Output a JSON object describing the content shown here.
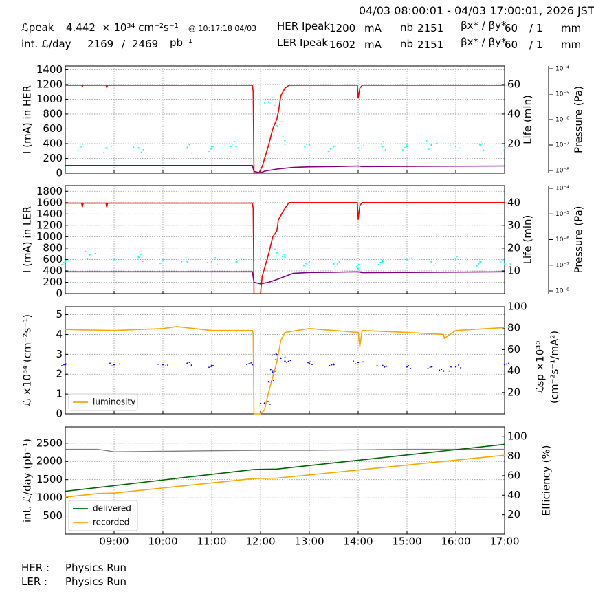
{
  "header": {
    "date_range": "04/03 08:00:01 - 04/03 17:00:01, 2026 JST",
    "lpeak_label": "ℒpeak",
    "lpeak_value": "4.442",
    "lpeak_unit": "× 10³⁴ cm⁻²s⁻¹",
    "lpeak_time": "@ 10:17:18 04/03",
    "intlum_label": "int. ℒ/day",
    "intlum_delivered": "2169",
    "intlum_sep": "/",
    "intlum_total": "2469",
    "intlum_unit": "pb⁻¹",
    "her": {
      "label": "HER Ipeak",
      "current": "1200",
      "unit": "mA",
      "nb_label": "nb",
      "nb": "2151",
      "beta_label": "βx* / βy*",
      "beta_x": "60",
      "beta_y": "/ 1",
      "beta_unit": "mm"
    },
    "ler": {
      "label": "LER Ipeak",
      "current": "1602",
      "unit": "mA",
      "nb_label": "nb",
      "nb": "2151",
      "beta_label": "βx* / βy*",
      "beta_x": "60",
      "beta_y": "/ 1",
      "beta_unit": "mm"
    }
  },
  "status": {
    "her_label": "HER :",
    "her_value": "Physics Run",
    "ler_label": "LER :",
    "ler_value": "Physics Run"
  },
  "colors": {
    "current": "#ff0000",
    "life": "#800080",
    "pressure": "#00ffff",
    "luminosity": "#ffa500",
    "specific": "#0000ff",
    "delivered": "#006400",
    "recorded": "#ffa500",
    "efficiency": "#808080"
  },
  "chart_data": [
    {
      "type": "line",
      "x_range": [
        "08:00",
        "17:00"
      ],
      "ylabel": "I (mA) in HER",
      "ylim": [
        0,
        1450
      ],
      "yticks": [
        0,
        200,
        400,
        600,
        800,
        1000,
        1200,
        1400
      ],
      "y2label": "Life (min)",
      "y2ticks": [
        20,
        40,
        60
      ],
      "y2lim": [
        0,
        72.5
      ],
      "y3label": "Pressure (Pa)",
      "y3ticks": [
        "10⁻⁸",
        "10⁻⁷",
        "10⁻⁶",
        "10⁻⁵",
        "10⁻⁴"
      ],
      "series": [
        {
          "key": "her_current",
          "x": [
            "08:00",
            "08:20",
            "08:21",
            "08:22",
            "08:50",
            "08:51",
            "08:52",
            "11:50",
            "11:51",
            "11:52",
            "11:58",
            "12:02",
            "12:10",
            "12:15",
            "12:20",
            "12:22",
            "12:25",
            "12:30",
            "12:35",
            "12:40",
            "13:59",
            "14:00",
            "14:02",
            "14:05",
            "17:00"
          ],
          "y": [
            1190,
            1190,
            1175,
            1190,
            1190,
            1160,
            1190,
            1190,
            1100,
            0,
            0,
            90,
            380,
            600,
            730,
            830,
            1050,
            1150,
            1190,
            1190,
            1190,
            1010,
            1150,
            1190,
            1190
          ]
        },
        {
          "key": "her_life",
          "x": [
            "08:00",
            "11:50",
            "11:52",
            "12:00",
            "12:05",
            "12:20",
            "12:40",
            "13:00",
            "13:30",
            "14:00",
            "14:05",
            "17:00"
          ],
          "y": [
            5.2,
            5.2,
            1.2,
            0.2,
            1.4,
            2.8,
            3.9,
            4.3,
            4.5,
            4.9,
            4.5,
            4.9
          ]
        },
        {
          "key": "her_pressure",
          "x": [
            "08:20",
            "08:50",
            "09:30",
            "10:30",
            "11:00",
            "11:30",
            "12:10",
            "12:20",
            "12:30",
            "13:00",
            "13:30",
            "14:00",
            "14:30",
            "15:00",
            "15:30",
            "16:00",
            "16:30",
            "17:00"
          ],
          "y": [
            18,
            17,
            17,
            17,
            18,
            18,
            48,
            32,
            22,
            19,
            18,
            17,
            18,
            18,
            19,
            18,
            19,
            17
          ]
        }
      ]
    },
    {
      "type": "line",
      "x_range": [
        "08:00",
        "17:00"
      ],
      "ylabel": "I (mA) in LER",
      "ylim": [
        0,
        1900
      ],
      "yticks": [
        0,
        200,
        400,
        600,
        800,
        1000,
        1200,
        1400,
        1600,
        1800
      ],
      "y2label": "Life (min)",
      "y2ticks": [
        10,
        20,
        30,
        40
      ],
      "y2lim": [
        0,
        47.5
      ],
      "y3label": "Pressure (Pa)",
      "y3ticks": [
        "10⁻⁸",
        "10⁻⁷",
        "10⁻⁶",
        "10⁻⁵",
        "10⁻⁴"
      ],
      "series": [
        {
          "key": "ler_current",
          "x": [
            "08:00",
            "08:20",
            "08:21",
            "08:22",
            "08:50",
            "08:51",
            "08:52",
            "11:50",
            "11:51",
            "11:52",
            "12:00",
            "12:02",
            "12:10",
            "12:15",
            "12:20",
            "12:22",
            "12:30",
            "12:35",
            "12:40",
            "13:59",
            "14:00",
            "14:02",
            "14:05",
            "17:00"
          ],
          "y": [
            1590,
            1590,
            1520,
            1590,
            1590,
            1520,
            1590,
            1590,
            1500,
            0,
            0,
            300,
            700,
            1000,
            1100,
            1300,
            1500,
            1600,
            1600,
            1600,
            1300,
            1550,
            1600,
            1600
          ]
        },
        {
          "key": "ler_life",
          "x": [
            "08:00",
            "11:50",
            "11:52",
            "12:00",
            "12:10",
            "12:20",
            "12:40",
            "13:00",
            "13:30",
            "14:00",
            "14:05",
            "17:00"
          ],
          "y": [
            9.6,
            9.6,
            5,
            4.3,
            5,
            6.2,
            8.9,
            9.3,
            9.4,
            9.6,
            9.2,
            9.6
          ]
        },
        {
          "key": "ler_pressure",
          "x": [
            "08:00",
            "08:30",
            "09:00",
            "09:30",
            "10:00",
            "10:30",
            "11:00",
            "11:30",
            "12:20",
            "12:30",
            "13:00",
            "13:30",
            "14:00",
            "14:30",
            "15:00",
            "15:30",
            "16:00",
            "16:30",
            "17:00"
          ],
          "y": [
            14,
            17,
            15,
            16,
            15,
            14,
            14,
            14,
            18,
            16,
            14,
            13,
            11,
            14,
            15,
            14,
            15,
            14,
            13
          ]
        }
      ]
    },
    {
      "type": "line",
      "x_range": [
        "08:00",
        "17:00"
      ],
      "ylabel": "ℒ ×10³⁴ (cm⁻²s⁻¹)",
      "ylim": [
        0,
        5.4
      ],
      "yticks": [
        0,
        1,
        2,
        3,
        4,
        5
      ],
      "y2label": "ℒsp ×10³⁰ (cm⁻²s⁻¹/mA²)",
      "y2ticks": [
        20,
        40,
        60,
        80,
        100
      ],
      "y2lim": [
        0,
        100
      ],
      "legend": [
        "luminosity"
      ],
      "legend_position": "lower-left",
      "series": [
        {
          "key": "luminosity",
          "name": "luminosity",
          "x": [
            "08:00",
            "09:00",
            "10:00",
            "10:17",
            "11:00",
            "11:50",
            "11:51",
            "11:52",
            "12:00",
            "12:05",
            "12:10",
            "12:20",
            "12:25",
            "12:30",
            "13:00",
            "13:30",
            "14:00",
            "14:02",
            "14:05",
            "15:00",
            "15:45",
            "15:46",
            "16:00",
            "17:00"
          ],
          "y": [
            4.25,
            4.2,
            4.3,
            4.4,
            4.2,
            4.2,
            4.0,
            0,
            0,
            0.2,
            1.1,
            2.6,
            3.7,
            4.1,
            4.3,
            4.2,
            4.1,
            3.4,
            4.2,
            4.1,
            4.0,
            3.8,
            4.2,
            4.35
          ]
        },
        {
          "key": "specific",
          "x": [
            "08:00",
            "09:00",
            "10:00",
            "10:30",
            "11:00",
            "11:50",
            "12:05",
            "12:10",
            "12:15",
            "12:20",
            "12:25",
            "12:30",
            "13:00",
            "13:30",
            "14:00",
            "14:30",
            "15:00",
            "15:30",
            "15:45",
            "16:00",
            "17:00"
          ],
          "y": [
            46,
            46,
            46,
            47,
            45,
            46,
            10,
            30,
            40,
            55,
            52,
            49,
            47,
            46,
            48,
            45,
            44,
            44,
            40,
            44,
            46
          ]
        }
      ]
    },
    {
      "type": "line",
      "x_range": [
        "08:00",
        "17:00"
      ],
      "xticks": [
        "09:00",
        "10:00",
        "11:00",
        "12:00",
        "13:00",
        "14:00",
        "15:00",
        "16:00",
        "17:00"
      ],
      "ylabel": "int. ℒ/day (pb⁻¹)",
      "ylim": [
        0,
        2950
      ],
      "yticks": [
        500,
        1000,
        1500,
        2000,
        2500
      ],
      "y2label": "Efficiency (%)",
      "y2ticks": [
        20,
        40,
        60,
        80,
        100
      ],
      "y2lim": [
        0,
        110
      ],
      "legend": [
        "delivered",
        "recorded"
      ],
      "legend_position": "lower-left",
      "series": [
        {
          "key": "delivered",
          "name": "delivered",
          "x": [
            "08:00",
            "11:52",
            "12:20",
            "17:00"
          ],
          "y": [
            1180,
            1780,
            1790,
            2470
          ]
        },
        {
          "key": "recorded",
          "name": "recorded",
          "x": [
            "08:00",
            "08:40",
            "09:00",
            "11:52",
            "12:20",
            "17:00"
          ],
          "y": [
            1020,
            1120,
            1130,
            1530,
            1540,
            2170
          ]
        },
        {
          "key": "efficiency",
          "x": [
            "08:00",
            "08:40",
            "09:00",
            "10:00",
            "11:00",
            "12:00",
            "13:00",
            "14:00",
            "15:00",
            "16:00",
            "17:00"
          ],
          "y": [
            87,
            87,
            84.5,
            85,
            85.5,
            86,
            86,
            86.5,
            87,
            87,
            87
          ]
        }
      ]
    }
  ]
}
